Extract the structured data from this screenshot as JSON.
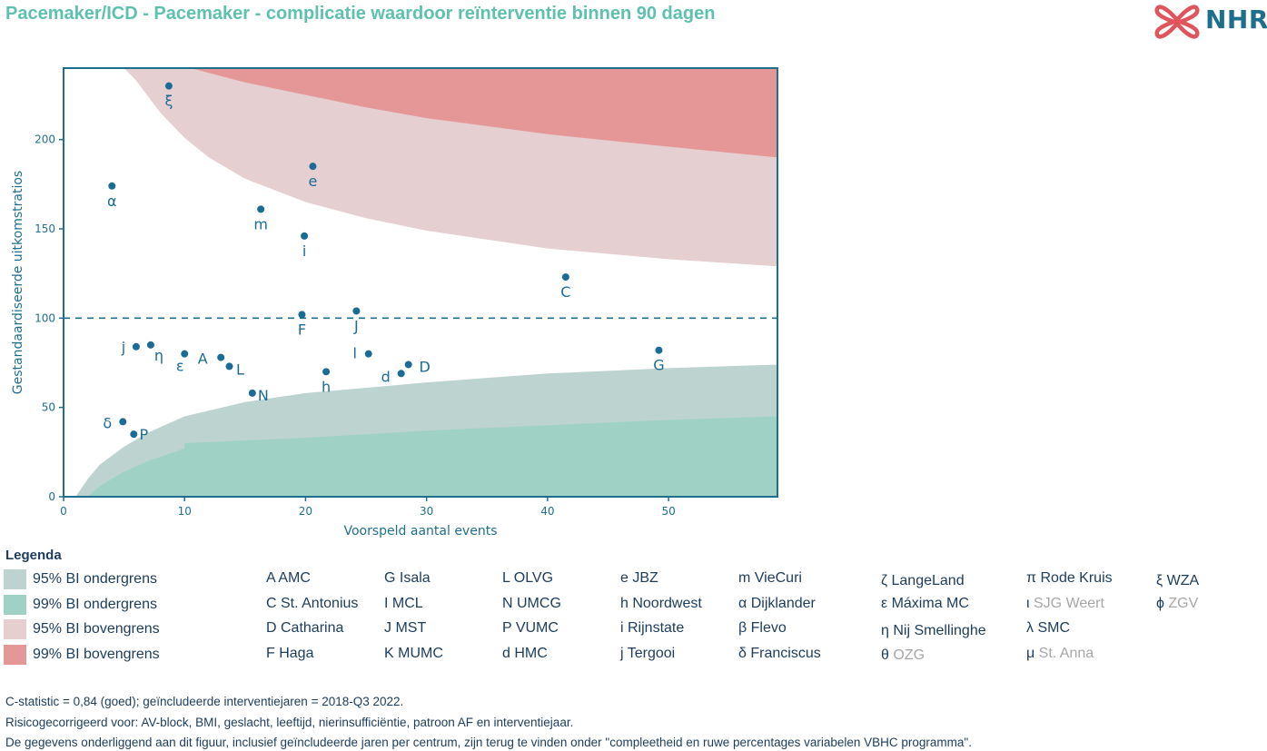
{
  "title": "Pacemaker/ICD - Pacemaker - complicatie waardoor reïnterventie binnen 90 dagen",
  "logo": {
    "text": "NHR",
    "brand_color": "#e2545c",
    "text_color": "#1e6f8e",
    "icon": "nhr-cross-logo-icon"
  },
  "colors": {
    "title": "#5dc1ad",
    "axis": "#1e6f8e",
    "point": "#1a6b96",
    "ci95_lower": "#bdd3cf",
    "ci99_lower": "#9fd1c5",
    "ci95_upper": "#e5cfd0",
    "ci99_upper": "#e59798"
  },
  "chart_data": {
    "type": "scatter",
    "title": "",
    "xlabel": "Voorspeld aantal events",
    "ylabel": "Gestandaardiseerde uitkomstratios",
    "xlim": [
      0,
      59
    ],
    "ylim": [
      0,
      240
    ],
    "x_ticks": [
      0,
      10,
      20,
      30,
      40,
      50
    ],
    "y_ticks": [
      0,
      50,
      100,
      150,
      200
    ],
    "reference_line": {
      "y": 100,
      "style": "dashed"
    },
    "bands": {
      "ci95_lower": [
        [
          1,
          0
        ],
        [
          2,
          10
        ],
        [
          3,
          18
        ],
        [
          5,
          28
        ],
        [
          7,
          36
        ],
        [
          10,
          45
        ],
        [
          15,
          53
        ],
        [
          20,
          58
        ],
        [
          30,
          64
        ],
        [
          40,
          69
        ],
        [
          50,
          72
        ],
        [
          59,
          74
        ]
      ],
      "ci99_lower": [
        [
          2,
          0
        ],
        [
          3,
          6
        ],
        [
          5,
          14
        ],
        [
          7,
          20
        ],
        [
          10,
          27
        ],
        [
          10,
          30
        ],
        [
          20,
          33
        ],
        [
          30,
          37
        ],
        [
          40,
          40
        ],
        [
          50,
          43
        ],
        [
          59,
          45
        ]
      ],
      "ci95_upper": [
        [
          5,
          240
        ],
        [
          6,
          233
        ],
        [
          8,
          215
        ],
        [
          10,
          201
        ],
        [
          12,
          190
        ],
        [
          15,
          178
        ],
        [
          20,
          165
        ],
        [
          25,
          156
        ],
        [
          30,
          149
        ],
        [
          40,
          139
        ],
        [
          50,
          133
        ],
        [
          59,
          129
        ]
      ],
      "ci99_upper": [
        [
          10.5,
          240
        ],
        [
          15,
          232
        ],
        [
          20,
          225
        ],
        [
          25,
          218
        ],
        [
          30,
          212
        ],
        [
          40,
          203
        ],
        [
          50,
          196
        ],
        [
          59,
          190
        ]
      ]
    },
    "points": [
      {
        "label": "ξ",
        "x": 8.7,
        "y": 230
      },
      {
        "label": "α",
        "x": 4.0,
        "y": 174
      },
      {
        "label": "e",
        "x": 20.6,
        "y": 185
      },
      {
        "label": "m",
        "x": 16.3,
        "y": 161
      },
      {
        "label": "i",
        "x": 19.9,
        "y": 146
      },
      {
        "label": "C",
        "x": 41.5,
        "y": 123
      },
      {
        "label": "J",
        "x": 24.2,
        "y": 104
      },
      {
        "label": "F",
        "x": 19.7,
        "y": 102
      },
      {
        "label": "j",
        "x": 6.0,
        "y": 84
      },
      {
        "label": "η",
        "x": 7.2,
        "y": 85
      },
      {
        "label": "ε",
        "x": 10.0,
        "y": 80
      },
      {
        "label": "A",
        "x": 13.0,
        "y": 78
      },
      {
        "label": "L",
        "x": 13.7,
        "y": 73
      },
      {
        "label": "l",
        "x": 25.2,
        "y": 80
      },
      {
        "label": "D",
        "x": 28.5,
        "y": 74
      },
      {
        "label": "d",
        "x": 27.9,
        "y": 69
      },
      {
        "label": "h",
        "x": 21.7,
        "y": 70
      },
      {
        "label": "G",
        "x": 49.2,
        "y": 82
      },
      {
        "label": "N",
        "x": 15.6,
        "y": 58
      },
      {
        "label": "δ",
        "x": 4.9,
        "y": 42
      },
      {
        "label": "P",
        "x": 5.8,
        "y": 35
      }
    ]
  },
  "legend": {
    "title": "Legenda",
    "bands": [
      {
        "label": "95% BI ondergrens",
        "color": "#bdd3cf"
      },
      {
        "label": "99% BI ondergrens",
        "color": "#9fd1c5"
      },
      {
        "label": "95% BI bovengrens",
        "color": "#e5cfd0"
      },
      {
        "label": "99% BI bovengrens",
        "color": "#e59798"
      }
    ],
    "hospital_columns": [
      [
        {
          "code": "A",
          "name": "AMC"
        },
        {
          "code": "C",
          "name": "St. Antonius"
        },
        {
          "code": "D",
          "name": "Catharina"
        },
        {
          "code": "F",
          "name": "Haga"
        }
      ],
      [
        {
          "code": "G",
          "name": "Isala"
        },
        {
          "code": "I",
          "name": "MCL"
        },
        {
          "code": "J",
          "name": "MST"
        },
        {
          "code": "K",
          "name": "MUMC"
        }
      ],
      [
        {
          "code": "L",
          "name": "OLVG"
        },
        {
          "code": "N",
          "name": "UMCG"
        },
        {
          "code": "P",
          "name": "VUMC"
        },
        {
          "code": "d",
          "name": "HMC"
        }
      ],
      [
        {
          "code": "e",
          "name": "JBZ"
        },
        {
          "code": "h",
          "name": "Noordwest"
        },
        {
          "code": "i",
          "name": "Rijnstate"
        },
        {
          "code": "j",
          "name": "Tergooi"
        }
      ],
      [
        {
          "code": "m",
          "name": "VieCuri"
        },
        {
          "code": "α",
          "name": "Dijklander"
        },
        {
          "code": "β",
          "name": "Flevo"
        },
        {
          "code": "δ",
          "name": "Franciscus"
        }
      ],
      [
        {
          "code": "ζ",
          "name": "LangeLand"
        },
        {
          "code": "ε",
          "name": "Máxima MC"
        },
        {
          "code": "η",
          "name": "Nij Smellinghe"
        },
        {
          "code": "θ",
          "name": "OZG",
          "greyed": true
        }
      ],
      [
        {
          "code": "π",
          "name": "Rode Kruis"
        },
        {
          "code": "ι",
          "name": "SJG Weert",
          "greyed": true
        },
        {
          "code": "λ",
          "name": "SMC"
        },
        {
          "code": "μ",
          "name": "St. Anna",
          "greyed": true
        }
      ],
      [
        {
          "code": "ξ",
          "name": "WZA"
        },
        {
          "code": "ϕ",
          "name": "ZGV",
          "greyed": true
        }
      ]
    ]
  },
  "footnotes": [
    "C-statistic =  0,84 (goed); geïncludeerde interventiejaren = 2018-Q3 2022.",
    "Risicogecorrigeerd voor: AV-block, BMI, geslacht, leeftijd, nierinsufficiëntie, patroon AF en interventiejaar.",
    "De gegevens onderliggend aan dit figuur, inclusief geïncludeerde jaren per centrum, zijn terug te vinden onder \"compleetheid en ruwe percentages variabelen VBHC programma\"."
  ]
}
